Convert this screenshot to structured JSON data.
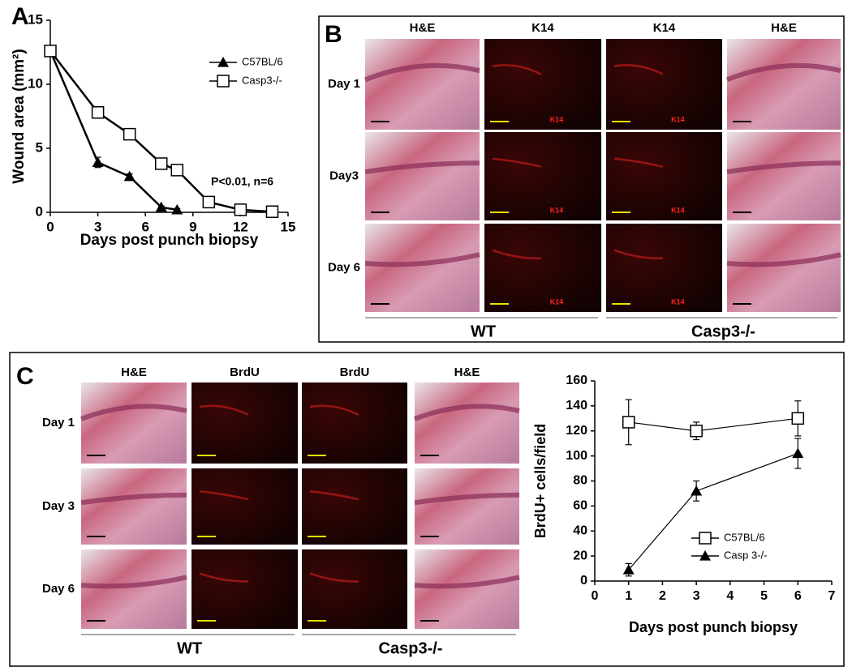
{
  "chart_data": [
    {
      "type": "line",
      "xlabel": "Days post punch biopsy",
      "ylabel": "Wound area (mm²)",
      "xlim": [
        0,
        15
      ],
      "xticks": [
        0,
        3,
        6,
        9,
        12,
        15
      ],
      "ylim": [
        0,
        15
      ],
      "yticks": [
        0,
        5,
        10,
        15
      ],
      "legend": "upper right",
      "annotation": "P<0.01, n=6",
      "series": [
        {
          "name": "C57BL/6",
          "color": "#000000",
          "marker": "triangle",
          "x": [
            0,
            3,
            5,
            7,
            8
          ],
          "values": [
            12.6,
            3.9,
            2.8,
            0.4,
            0.2
          ],
          "errors": [
            0.3,
            0.4,
            0.2,
            0.1,
            0.1
          ]
        },
        {
          "name": "Casp3-/-",
          "color": "#000000",
          "marker": "square",
          "x": [
            0,
            3,
            5,
            7,
            8,
            10,
            12,
            14
          ],
          "values": [
            12.6,
            7.8,
            6.1,
            3.8,
            3.3,
            0.8,
            0.2,
            0.05
          ],
          "errors": [
            0.3,
            0.4,
            0.2,
            0.3,
            0.2,
            0.2,
            0.1,
            0.05
          ]
        }
      ]
    },
    {
      "type": "line",
      "xlabel": "Days post punch biopsy",
      "ylabel": "BrdU+ cells/field",
      "xlim": [
        0,
        7
      ],
      "xticks": [
        0,
        1,
        2,
        3,
        4,
        5,
        6,
        7
      ],
      "ylim": [
        0,
        160
      ],
      "yticks": [
        0,
        20,
        40,
        60,
        80,
        100,
        120,
        140,
        160
      ],
      "legend": "lower right",
      "series": [
        {
          "name": "C57BL/6",
          "color": "#000000",
          "marker": "square",
          "x": [
            1,
            3,
            6
          ],
          "values": [
            127,
            120,
            130
          ],
          "errors": [
            18,
            7,
            14
          ]
        },
        {
          "name": "Casp 3-/-",
          "color": "#000000",
          "marker": "triangle",
          "x": [
            1,
            3,
            6
          ],
          "values": [
            9,
            72,
            102
          ],
          "errors": [
            5,
            8,
            12
          ]
        }
      ]
    }
  ],
  "panels": {
    "A": {
      "label": "A"
    },
    "B": {
      "label": "B",
      "columns": [
        "H&E",
        "K14",
        "K14",
        "H&E"
      ],
      "rows": [
        "Day 1",
        "Day3",
        "Day 6"
      ],
      "stain_label": "K14",
      "groups": [
        "WT",
        "Casp3-/-"
      ]
    },
    "C": {
      "label": "C",
      "columns": [
        "H&E",
        "BrdU",
        "BrdU",
        "H&E"
      ],
      "rows": [
        "Day 1",
        "Day 3",
        "Day 6"
      ],
      "groups": [
        "WT",
        "Casp3-/-"
      ]
    }
  }
}
